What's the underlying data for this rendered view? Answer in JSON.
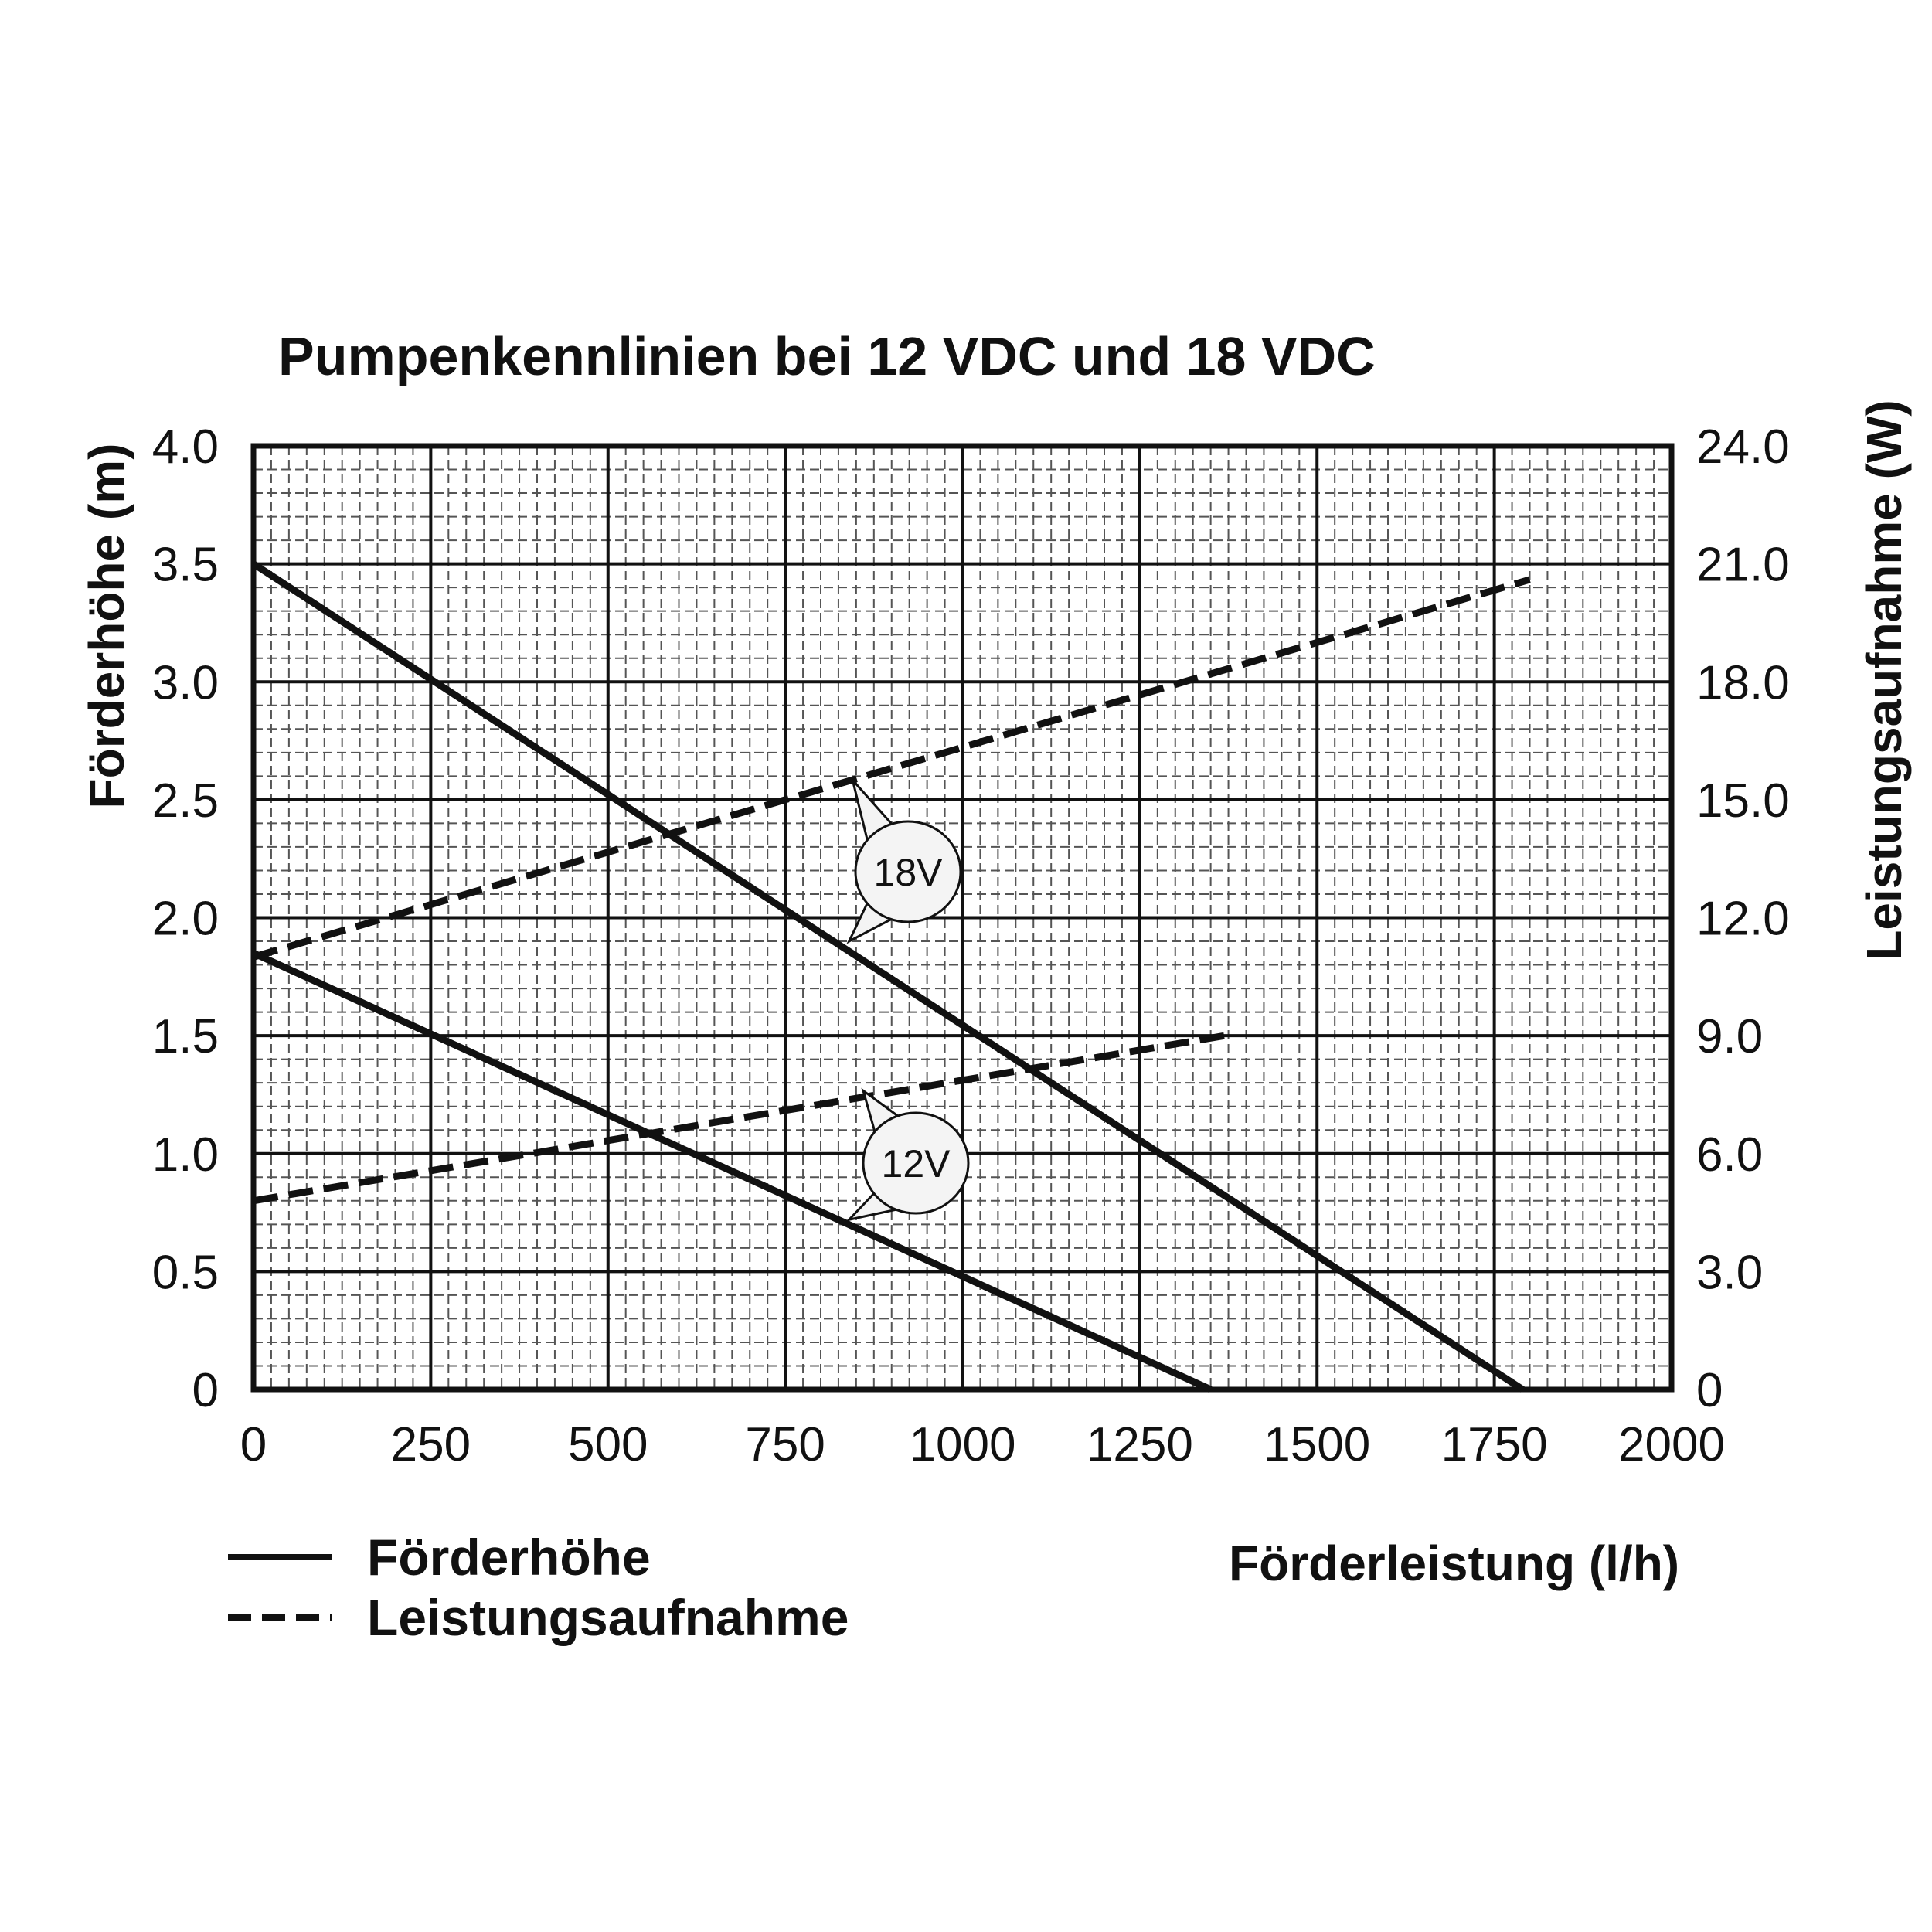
{
  "chart_data": {
    "type": "line",
    "title": "Pumpenkennlinien bei 12 VDC und 18 VDC",
    "xlabel": "Förderleistung (l/h)",
    "ylabel_left": "Förderhöhe (m)",
    "ylabel_right": "Leistungsaufnahme (W)",
    "xlim": [
      0,
      2000
    ],
    "ylim_left": [
      0,
      4.0
    ],
    "ylim_right": [
      0,
      24.0
    ],
    "x_ticks": [
      "0",
      "250",
      "500",
      "750",
      "1000",
      "1250",
      "1500",
      "1750",
      "2000"
    ],
    "y_left_ticks": [
      "0",
      "0.5",
      "1.0",
      "1.5",
      "2.0",
      "2.5",
      "3.0",
      "3.5",
      "4.0"
    ],
    "y_right_ticks": [
      "0",
      "3.0",
      "6.0",
      "9.0",
      "12.0",
      "15.0",
      "18.0",
      "21.0",
      "24.0"
    ],
    "grid": true,
    "legend_position": "bottom-left",
    "legend": [
      {
        "label": "Förderhöhe",
        "style": "solid"
      },
      {
        "label": "Leistungsaufnahme",
        "style": "dashed"
      }
    ],
    "series": [
      {
        "voltage": "18V",
        "quantity": "Förderhöhe",
        "axis": "left",
        "style": "solid",
        "x": [
          0,
          1790
        ],
        "y": [
          3.5,
          0
        ]
      },
      {
        "voltage": "18V",
        "quantity": "Leistungsaufnahme",
        "axis": "right",
        "style": "dashed",
        "x": [
          0,
          1800
        ],
        "y": [
          11.0,
          20.6
        ]
      },
      {
        "voltage": "12V",
        "quantity": "Förderhöhe",
        "axis": "left",
        "style": "solid",
        "x": [
          0,
          1350
        ],
        "y": [
          1.85,
          0
        ]
      },
      {
        "voltage": "12V",
        "quantity": "Leistungsaufnahme",
        "axis": "right",
        "style": "dashed",
        "x": [
          0,
          1370
        ],
        "y": [
          4.8,
          9.0
        ]
      }
    ],
    "annotations": [
      {
        "text": "18V",
        "points_to_x": [
          845,
          840
        ],
        "points_to_y": [
          15.5,
          1.9
        ]
      },
      {
        "text": "12V",
        "points_to_x": [
          860,
          840
        ],
        "points_to_y": [
          7.6,
          0.72
        ]
      }
    ]
  },
  "colors": {
    "line": "#111111",
    "grid_major": "#111111",
    "grid_minor": "#555555",
    "callout_fill": "#f4f4f4"
  }
}
